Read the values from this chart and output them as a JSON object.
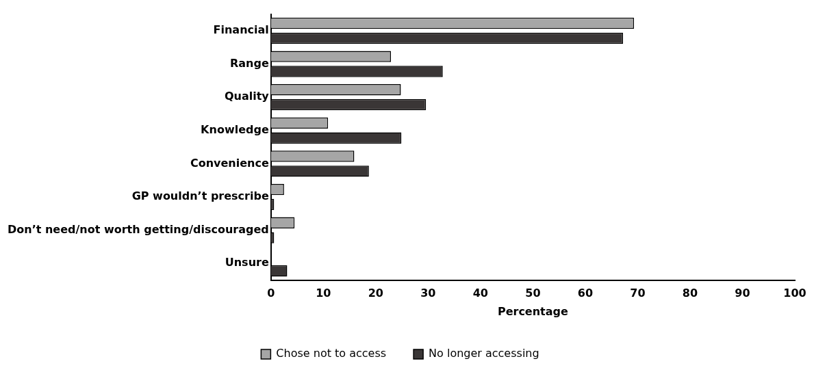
{
  "chart_data": {
    "type": "bar",
    "orientation": "horizontal",
    "xlabel": "Percentage",
    "categories": [
      "Financial",
      "Range",
      "Quality",
      "Knowledge",
      "Convenience",
      "GP wouldn’t prescribe",
      "Don’t need/not worth getting/discouraged",
      "Unsure"
    ],
    "series": [
      {
        "name": "Chose not to access",
        "color": "#a6a6a6",
        "values": [
          69.3,
          22.9,
          24.8,
          10.9,
          15.9,
          2.5,
          4.5,
          0
        ]
      },
      {
        "name": "No longer accessing",
        "color": "#3a3636",
        "values": [
          67.2,
          32.8,
          29.6,
          24.9,
          18.7,
          0.6,
          0.6,
          3.1
        ]
      }
    ],
    "xlim": [
      0,
      100
    ],
    "xticks": [
      0,
      10,
      20,
      30,
      40,
      50,
      60,
      70,
      80,
      90,
      100
    ],
    "grid": false,
    "legend": "bottom"
  }
}
